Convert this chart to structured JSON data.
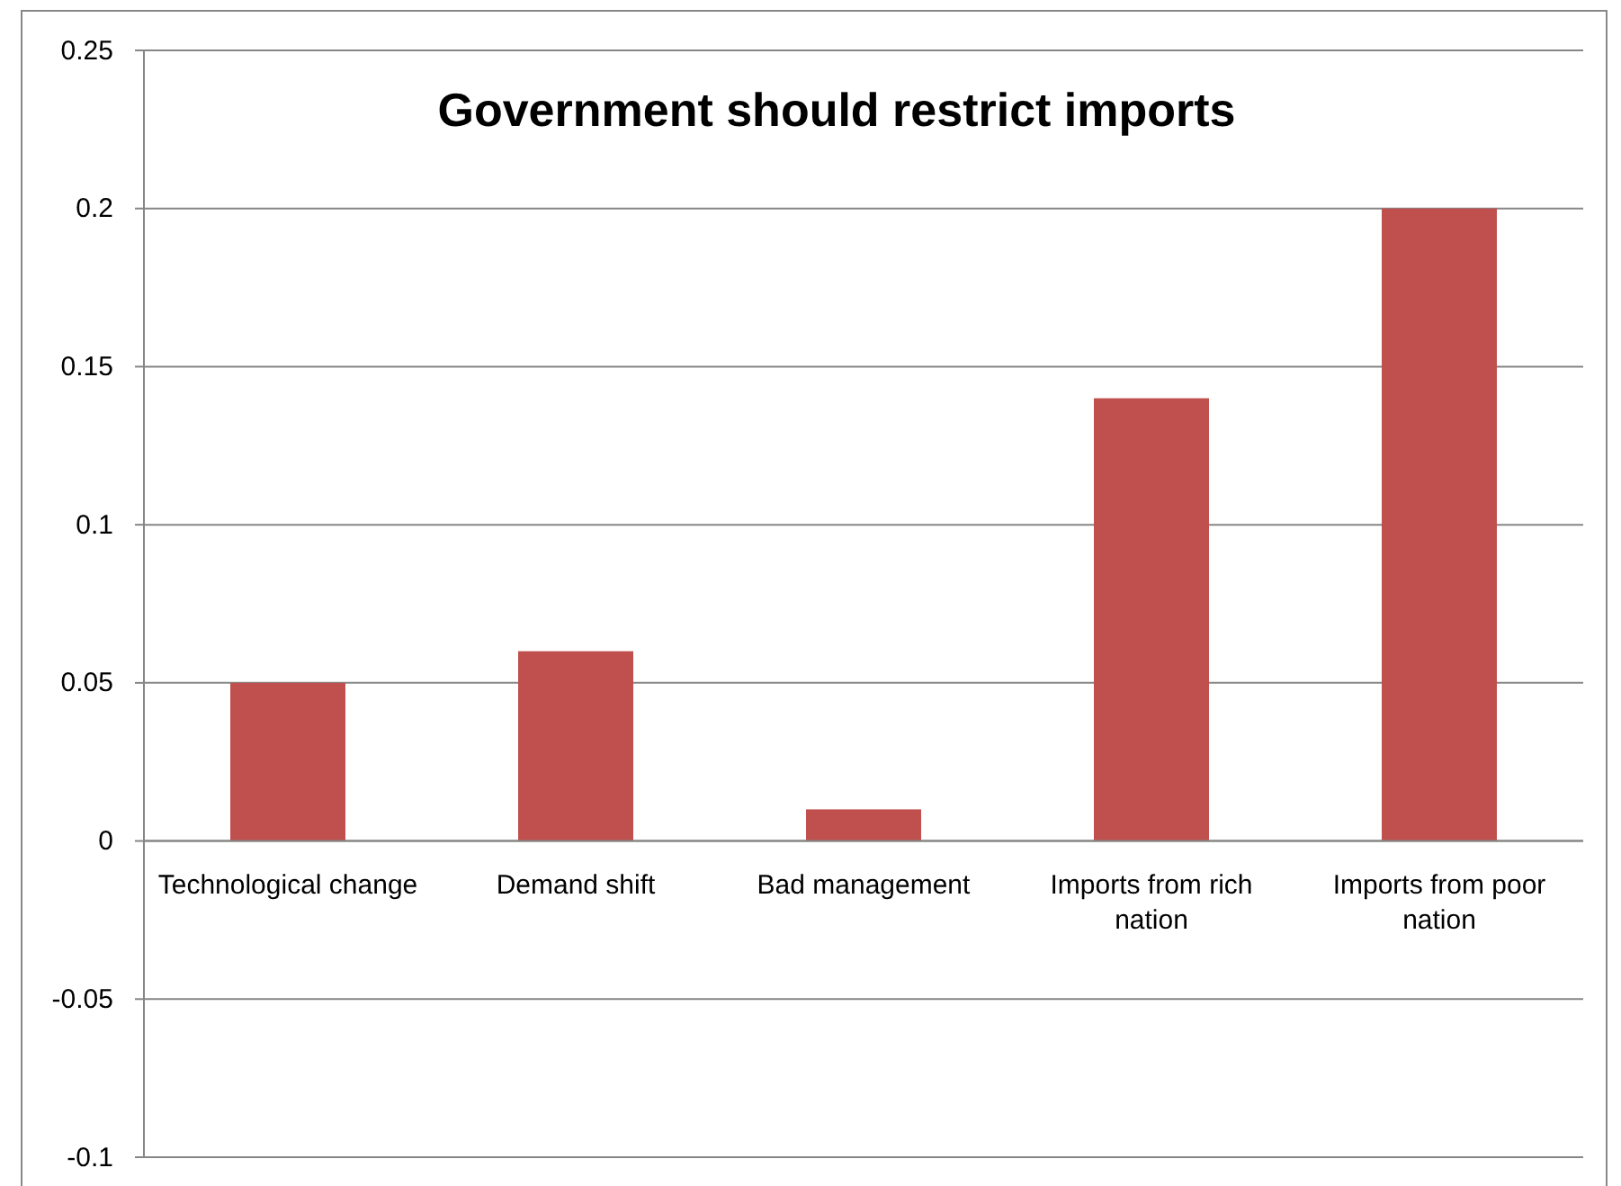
{
  "chart_data": {
    "type": "bar",
    "title": "Government should restrict imports",
    "categories": [
      "Technological change",
      "Demand shift",
      "Bad management",
      "Imports from rich nation",
      "Imports from poor nation"
    ],
    "series": [
      {
        "color": "#c0504d",
        "values": [
          0.05,
          0.06,
          0.01,
          0.14,
          0.2
        ]
      }
    ],
    "ylim": [
      -0.1,
      0.25
    ],
    "yticks": [
      -0.1,
      -0.05,
      0,
      0.05,
      0.1,
      0.15,
      0.2,
      0.25
    ],
    "grid": "y"
  }
}
